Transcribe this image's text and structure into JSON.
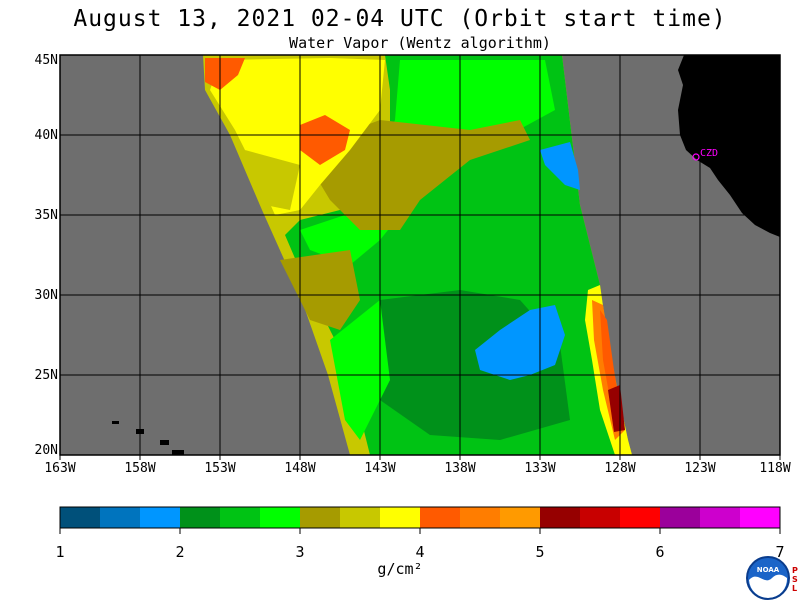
{
  "title": "August 13, 2021  02-04 UTC  (Orbit start time)",
  "subtitle": "Water Vapor (Wentz algorithm)",
  "lat_labels": [
    "45N",
    "40N",
    "35N",
    "30N",
    "25N",
    "20N"
  ],
  "lon_labels": [
    "163W",
    "158W",
    "153W",
    "148W",
    "143W",
    "138W",
    "133W",
    "128W",
    "123W",
    "118W"
  ],
  "station_label": "CZD",
  "colorbar": {
    "colors": [
      "#00507a",
      "#0074be",
      "#0096ff",
      "#00911a",
      "#00c314",
      "#00ff00",
      "#a69b00",
      "#c8c800",
      "#ffff00",
      "#ff5a00",
      "#ff7d00",
      "#ff9a00",
      "#960000",
      "#c80000",
      "#ff0000",
      "#9b009b",
      "#cd00cd",
      "#ff00ff"
    ],
    "tick_labels": [
      "1",
      "2",
      "3",
      "4",
      "5",
      "6",
      "7"
    ],
    "units": "g/cm²"
  },
  "colors": {
    "ocean_no_data": "#6e6e6e",
    "land": "#000000",
    "station": "#ff00ff"
  },
  "logo": {
    "name": "NOAA",
    "side_text": "PSL"
  }
}
